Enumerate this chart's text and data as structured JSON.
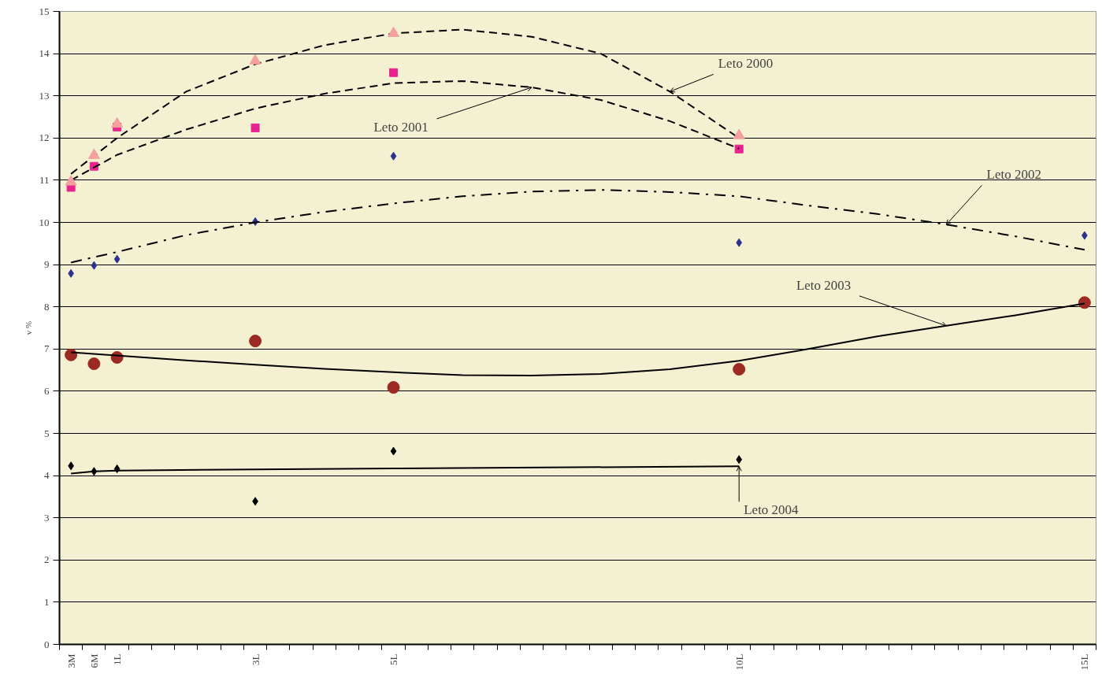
{
  "chart_data": {
    "type": "scatter",
    "categories": [
      "3M",
      "6M",
      "1L",
      null,
      null,
      null,
      null,
      null,
      "3L",
      null,
      null,
      null,
      null,
      null,
      "5L",
      null,
      null,
      null,
      null,
      null,
      null,
      null,
      null,
      null,
      null,
      null,
      null,
      null,
      null,
      "10L",
      null,
      null,
      null,
      null,
      null,
      null,
      null,
      null,
      null,
      null,
      null,
      null,
      null,
      null,
      "15L"
    ],
    "ylabel": "v %",
    "ylim": [
      0,
      15
    ],
    "yticks": [
      0,
      1,
      2,
      3,
      4,
      5,
      6,
      7,
      8,
      9,
      10,
      11,
      12,
      13,
      14,
      15
    ],
    "grid": "y",
    "legend": false,
    "series": [
      {
        "type": "scatter",
        "marker": "triangle",
        "color": "#f4a0a0",
        "values": [
          10.96,
          11.59,
          12.33,
          null,
          null,
          null,
          null,
          null,
          13.83,
          null,
          null,
          null,
          null,
          null,
          14.48,
          null,
          null,
          null,
          null,
          null,
          null,
          null,
          null,
          null,
          null,
          null,
          null,
          null,
          null,
          12.06,
          null,
          null,
          null,
          null,
          null,
          null,
          null,
          null,
          null,
          null,
          null,
          null,
          null,
          null,
          null
        ]
      },
      {
        "type": "scatter",
        "marker": "square",
        "color": "#e8238f",
        "values": [
          10.83,
          11.33,
          12.26,
          null,
          null,
          null,
          null,
          null,
          12.24,
          null,
          null,
          null,
          null,
          null,
          13.55,
          null,
          null,
          null,
          null,
          null,
          null,
          null,
          null,
          null,
          null,
          null,
          null,
          null,
          null,
          11.74,
          null,
          null,
          null,
          null,
          null,
          null,
          null,
          null,
          null,
          null,
          null,
          null,
          null,
          null,
          null
        ]
      },
      {
        "type": "scatter",
        "marker": "diamond",
        "color": "#2e3192",
        "values": [
          8.79,
          8.98,
          9.13,
          null,
          null,
          null,
          null,
          null,
          10.02,
          null,
          null,
          null,
          null,
          null,
          11.57,
          null,
          null,
          null,
          null,
          null,
          null,
          null,
          null,
          null,
          null,
          null,
          null,
          null,
          null,
          9.52,
          null,
          null,
          null,
          null,
          null,
          null,
          null,
          null,
          null,
          null,
          null,
          null,
          null,
          null,
          9.69
        ]
      },
      {
        "type": "scatter",
        "marker": "circle",
        "color": "#9b2a22",
        "values": [
          6.86,
          6.65,
          6.8,
          null,
          null,
          null,
          null,
          null,
          7.19,
          null,
          null,
          null,
          null,
          null,
          6.09,
          null,
          null,
          null,
          null,
          null,
          null,
          null,
          null,
          null,
          null,
          null,
          null,
          null,
          null,
          6.52,
          null,
          null,
          null,
          null,
          null,
          null,
          null,
          null,
          null,
          null,
          null,
          null,
          null,
          null,
          8.1
        ]
      },
      {
        "type": "scatter",
        "marker": "diamond",
        "color": "#000000",
        "values": [
          4.23,
          4.1,
          4.16,
          null,
          null,
          null,
          null,
          null,
          3.39,
          null,
          null,
          null,
          null,
          null,
          4.58,
          null,
          null,
          null,
          null,
          null,
          null,
          null,
          null,
          null,
          null,
          null,
          null,
          null,
          null,
          4.38,
          null,
          null,
          null,
          null,
          null,
          null,
          null,
          null,
          null,
          null,
          null,
          null,
          null,
          null,
          null
        ]
      },
      {
        "type": "line",
        "name": "Leto 2000",
        "line_style": "dashed",
        "color": "#000000",
        "values": [
          11.15,
          null,
          12.0,
          null,
          null,
          13.1,
          null,
          null,
          13.75,
          null,
          null,
          14.2,
          null,
          null,
          14.48,
          null,
          null,
          14.57,
          null,
          null,
          14.4,
          null,
          null,
          14.0,
          null,
          null,
          13.1,
          null,
          null,
          12.0,
          null,
          null,
          null,
          null,
          null,
          null,
          null,
          null,
          null,
          null,
          null,
          null,
          null,
          null,
          null
        ]
      },
      {
        "type": "line",
        "name": "Leto 2001",
        "line_style": "dashed",
        "color": "#000000",
        "values": [
          11.0,
          null,
          11.6,
          null,
          null,
          12.2,
          null,
          null,
          12.7,
          null,
          null,
          13.05,
          null,
          null,
          13.3,
          null,
          null,
          13.35,
          null,
          null,
          13.2,
          null,
          null,
          12.9,
          null,
          null,
          12.4,
          null,
          null,
          11.75,
          null,
          null,
          null,
          null,
          null,
          null,
          null,
          null,
          null,
          null,
          null,
          null,
          null,
          null,
          null
        ]
      },
      {
        "type": "line",
        "name": "Leto 2002",
        "line_style": "dashdot",
        "color": "#000000",
        "values": [
          9.05,
          null,
          9.3,
          null,
          null,
          9.7,
          null,
          null,
          10.0,
          null,
          null,
          10.25,
          null,
          null,
          10.45,
          null,
          null,
          10.62,
          null,
          null,
          10.73,
          null,
          null,
          10.77,
          null,
          null,
          10.72,
          null,
          null,
          10.62,
          null,
          null,
          10.4,
          null,
          null,
          10.2,
          null,
          null,
          9.95,
          null,
          null,
          9.67,
          null,
          null,
          9.35
        ]
      },
      {
        "type": "line",
        "name": "Leto 2003",
        "line_style": "solid",
        "color": "#000000",
        "values": [
          6.92,
          null,
          null,
          null,
          null,
          6.73,
          null,
          null,
          6.63,
          null,
          null,
          6.53,
          null,
          null,
          6.45,
          null,
          null,
          6.38,
          null,
          null,
          6.37,
          null,
          null,
          6.41,
          null,
          null,
          6.52,
          null,
          null,
          6.72,
          null,
          null,
          7.0,
          null,
          null,
          7.3,
          null,
          null,
          7.55,
          null,
          null,
          7.8,
          null,
          null,
          8.08
        ]
      },
      {
        "type": "line",
        "name": "Leto 2004",
        "line_style": "solid",
        "color": "#000000",
        "values": [
          4.05,
          4.1,
          4.12,
          null,
          null,
          null,
          null,
          null,
          null,
          null,
          null,
          null,
          null,
          null,
          4.17,
          null,
          null,
          null,
          null,
          null,
          null,
          null,
          null,
          null,
          null,
          null,
          null,
          null,
          null,
          4.22,
          null,
          null,
          null,
          null,
          null,
          null,
          null,
          null,
          null,
          null,
          null,
          null,
          null,
          null,
          null
        ]
      }
    ]
  }
}
